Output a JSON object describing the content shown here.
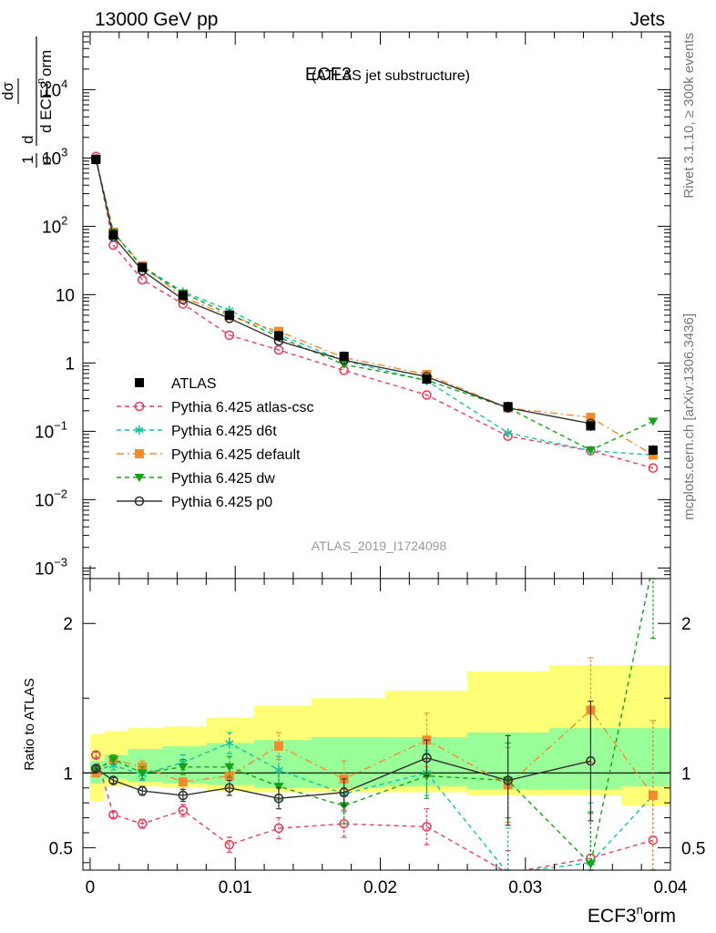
{
  "header": {
    "left": "13000 GeV pp",
    "right": "Jets"
  },
  "side_labels": {
    "rivet": "Rivet 3.1.10, ≥ 300k events",
    "mcplots": "mcplots.cern.ch [arXiv:1306.3436]"
  },
  "chart_data": {
    "type": "line",
    "title": "ECF3",
    "subtitle": "(ATLAS jet substructure)",
    "analysis_id": "ATLAS_2019_I1724098",
    "xlabel": "ECF3^norm",
    "xlabel_base": "ECF3",
    "xlabel_sup": "n",
    "xlabel_tail": "orm",
    "ylabel_top": "1/σ dσ/d ECF3^norm",
    "ylabel_ratio": "Ratio to ATLAS",
    "xlim": [
      -0.0005,
      0.04
    ],
    "x_ticks": [
      0,
      0.01,
      0.02,
      0.03,
      0.04
    ],
    "x_tick_labels": [
      "0",
      "0.01",
      "0.02",
      "0.03",
      "0.04"
    ],
    "ylim_top": [
      0.0007,
      70000
    ],
    "y_scale_top": "log",
    "y_ticks_top": [
      "10^-3",
      "10^-2",
      "10^-1",
      "1",
      "10",
      "10^2",
      "10^3",
      "10^4"
    ],
    "ylim_ratio": [
      0.35,
      2.3
    ],
    "y_ticks_ratio": [
      0.5,
      1,
      2
    ],
    "x": [
      0.0004,
      0.0016,
      0.0036,
      0.0064,
      0.0096,
      0.013,
      0.0175,
      0.0232,
      0.0288,
      0.0345,
      0.0388
    ],
    "series": [
      {
        "name": "ATLAS",
        "color": "#000000",
        "marker": "square",
        "y": [
          950,
          75,
          25,
          9.8,
          5.0,
          2.5,
          1.25,
          0.58,
          0.23,
          0.12,
          0.053
        ],
        "band_stat_low": [
          0.93,
          0.96,
          0.94,
          0.93,
          0.92,
          0.9,
          0.9,
          0.91,
          0.89,
          0.89,
          0.91
        ],
        "band_stat_high": [
          1.08,
          1.12,
          1.16,
          1.18,
          1.2,
          1.22,
          1.24,
          1.24,
          1.27,
          1.3,
          1.3
        ],
        "band_total_low": [
          0.81,
          0.91,
          0.91,
          0.9,
          0.88,
          0.87,
          0.87,
          0.87,
          0.85,
          0.85,
          0.78
        ],
        "band_total_high": [
          1.26,
          1.28,
          1.3,
          1.31,
          1.37,
          1.45,
          1.5,
          1.55,
          1.68,
          1.72,
          1.72
        ]
      },
      {
        "name": "Pythia 6.425 atlas-csc",
        "color": "#e6415d",
        "marker": "open-circle",
        "dash": "5,4",
        "y": [
          1050,
          53,
          16.5,
          7.3,
          2.55,
          1.55,
          0.78,
          0.34,
          0.085,
          0.052,
          0.029
        ],
        "ratio": [
          1.12,
          0.72,
          0.66,
          0.75,
          0.52,
          0.63,
          0.66,
          0.64,
          0.33,
          0.43,
          0.55
        ],
        "ratio_err": [
          0.02,
          0.02,
          0.03,
          0.04,
          0.05,
          0.07,
          0.09,
          0.12,
          0.15,
          0.3,
          0.3
        ]
      },
      {
        "name": "Pythia 6.425 d6t",
        "color": "#17c2a0",
        "marker": "asterisk",
        "dash": "5,4",
        "y": [
          950,
          80,
          26,
          11.0,
          5.9,
          2.6,
          1.08,
          0.55,
          0.095,
          0.052,
          0.045
        ],
        "ratio": [
          1.02,
          1.05,
          0.99,
          1.07,
          1.2,
          1.02,
          0.86,
          1.0,
          0.33,
          0.4,
          0.85
        ],
        "ratio_err": [
          0.02,
          0.03,
          0.04,
          0.05,
          0.07,
          0.09,
          0.12,
          0.15,
          0.3,
          0.4,
          0.5
        ]
      },
      {
        "name": "Pythia 6.425 default",
        "color": "#f28b30",
        "marker": "square",
        "dash": "8,4,2,4",
        "y": [
          960,
          82,
          26.5,
          9.2,
          4.9,
          2.9,
          1.2,
          0.68,
          0.22,
          0.16,
          0.045
        ],
        "ratio": [
          1.0,
          1.09,
          1.04,
          0.94,
          0.98,
          1.18,
          0.96,
          1.22,
          0.92,
          1.42,
          0.85
        ],
        "ratio_err": [
          0.02,
          0.03,
          0.04,
          0.05,
          0.07,
          0.09,
          0.12,
          0.18,
          0.25,
          0.35,
          0.5
        ]
      },
      {
        "name": "Pythia 6.425 dw",
        "color": "#16a316",
        "marker": "triangle-down",
        "dash": "5,4",
        "y": [
          970,
          82,
          25,
          10.5,
          5.2,
          2.4,
          0.95,
          0.56,
          0.22,
          0.053,
          0.14
        ],
        "ratio": [
          1.02,
          1.09,
          1.0,
          1.04,
          1.04,
          0.91,
          0.78,
          0.98,
          0.95,
          0.39,
          2.4
        ],
        "ratio_err": [
          0.02,
          0.03,
          0.04,
          0.05,
          0.07,
          0.09,
          0.12,
          0.15,
          0.25,
          0.35,
          0.5
        ]
      },
      {
        "name": "Pythia 6.425 p0",
        "color": "#333333",
        "marker": "open-circle",
        "dash": "",
        "y": [
          960,
          70,
          22.5,
          8.5,
          4.5,
          2.1,
          1.1,
          0.63,
          0.22,
          0.13,
          null
        ],
        "ratio": [
          1.03,
          0.95,
          0.88,
          0.85,
          0.9,
          0.83,
          0.87,
          1.1,
          0.95,
          1.08,
          null
        ],
        "ratio_err": [
          0.02,
          0.02,
          0.03,
          0.04,
          0.05,
          0.07,
          0.09,
          0.12,
          0.3,
          0.4,
          null
        ]
      }
    ]
  }
}
